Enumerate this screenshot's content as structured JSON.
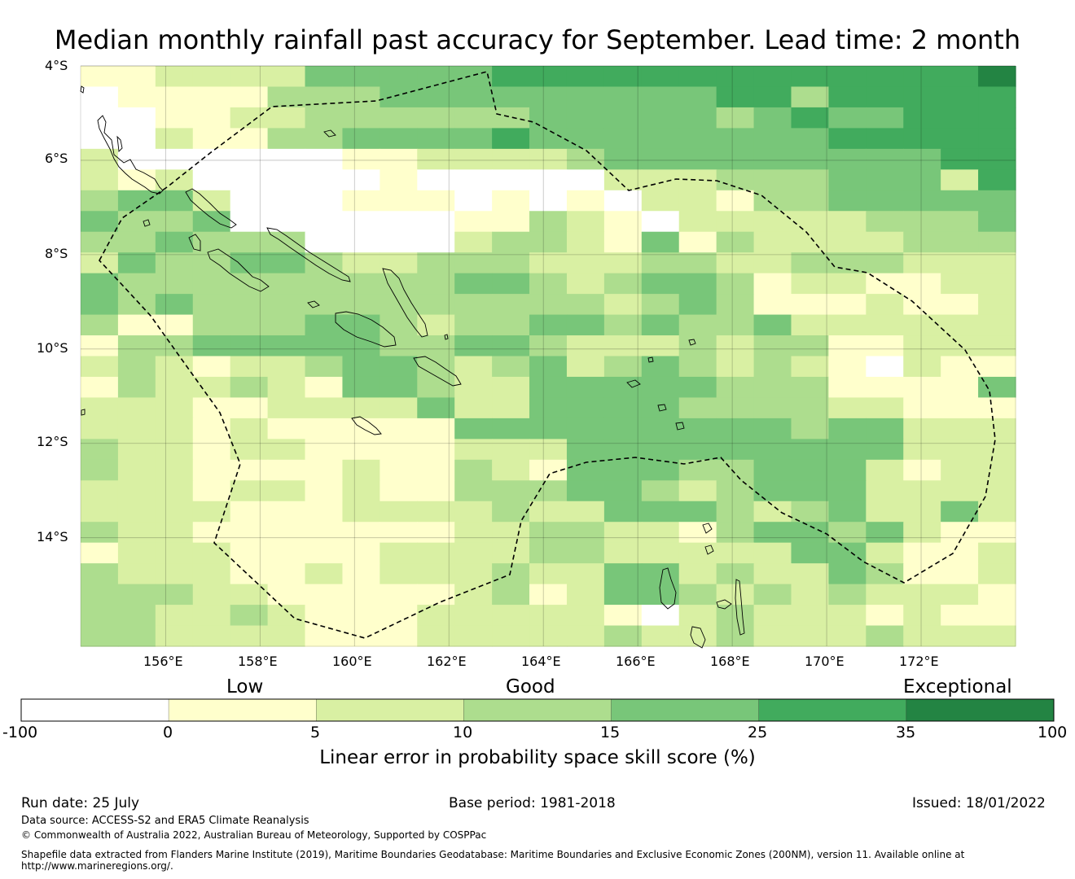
{
  "title": "Median monthly rainfall past accuracy for September. Lead time: 2 month",
  "map": {
    "lat_labels": [
      "4°S",
      "6°S",
      "8°S",
      "10°S",
      "12°S",
      "14°S"
    ],
    "lon_labels": [
      "156°E",
      "158°E",
      "160°E",
      "162°E",
      "164°E",
      "166°E",
      "168°E",
      "170°E",
      "172°E"
    ],
    "lon_range": [
      154.2,
      174.0
    ],
    "lat_range": [
      -4.0,
      -16.3
    ],
    "skill_grid_note": "0=<0, 1=0-5, 2=5-10, 3=10-15, 4=15-25, 5=25-35, 6=35-100",
    "skill_grid": [
      "1122224444455555555555556",
      "0111133344444444455355555",
      "0011223333334444434544555",
      "0021133444454444444455555",
      "2000000112222344444444455",
      "2120000010000022233344425",
      "3442000111010102213344444",
      "4334000000113210222223334",
      "3343330000233214132222333",
      "2433443223332223322333222",
      "4333333333443234431221122",
      "4343333333333323431112112",
      "3113334432334434334222222",
      "1334444433443222323311222",
      "2321223443234234323210211",
      "1322321443224444433311114",
      "2221122224224444333322111",
      "2221211111444444444344222",
      "3221221111222444444444222",
      "3221111211321444334442122",
      "2221221211333443234442222",
      "2222111222232244432342242",
      "3221111111223322134434211",
      "1222111122223322222442112",
      "3222112122232244232243112",
      "3332211111231244323232221",
      "3322321112222210232221211",
      "3322221112222232232223222"
    ]
  },
  "colorbar": {
    "headings": [
      "Low",
      "Good",
      "Exceptional"
    ],
    "ticks": [
      "-100",
      "0",
      "5",
      "10",
      "15",
      "25",
      "35",
      "100"
    ],
    "colors": [
      "#ffffff",
      "#ffffcc",
      "#d9f0a3",
      "#addd8e",
      "#78c679",
      "#41ab5d",
      "#238443"
    ],
    "xlabel": "Linear error in probability space skill score (%)"
  },
  "footer": {
    "run_date": "Run date: 25 July",
    "base_period": "Base period: 1981-2018",
    "issued": "Issued: 18/01/2022",
    "data_source": "Data source: ACCESS-S2 and ERA5 Climate Reanalysis",
    "copyright": "© Commonwealth of Australia 2022, Australian Bureau of Meteorology, Supported by COSPPac",
    "shapefile_line1": "Shapefile data extracted from Flanders Marine Institute (2019), Maritime Boundaries Geodatabase: Maritime Boundaries and Exclusive Economic Zones (200NM), version 11. Available online at",
    "shapefile_line2": "http://www.marineregions.org/."
  }
}
